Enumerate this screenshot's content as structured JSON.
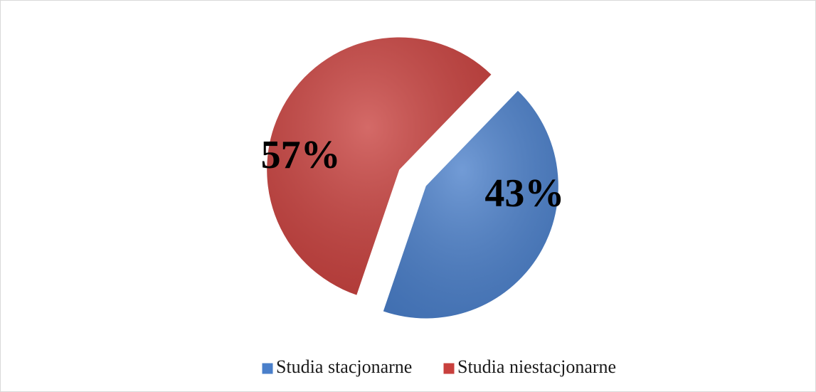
{
  "chart_data": {
    "type": "pie",
    "categories": [
      "Studia stacjonarne",
      "Studia niestacjonarne"
    ],
    "values": [
      43,
      57
    ],
    "value_labels": [
      "43%",
      "57%"
    ],
    "colors": [
      "#4a7fca",
      "#c8403d"
    ],
    "legend": "bottom"
  }
}
